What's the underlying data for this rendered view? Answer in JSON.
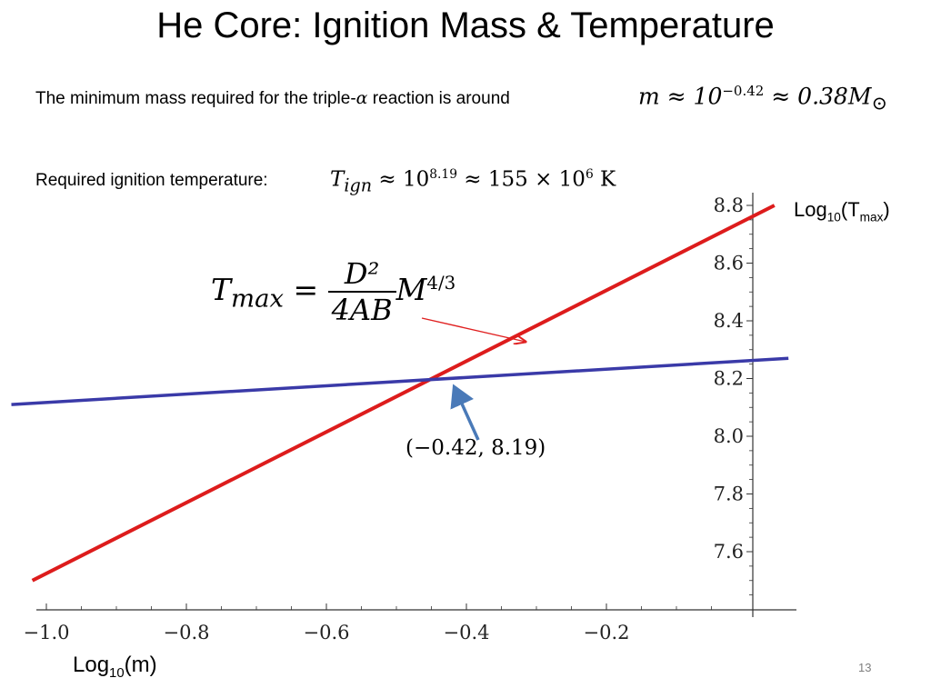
{
  "slide": {
    "title": "He Core: Ignition Mass & Temperature",
    "page_number": "13"
  },
  "text": {
    "min_mass_prefix": "The minimum mass required for the triple-",
    "alpha": "α",
    "min_mass_suffix": " reaction is around",
    "min_mass_eq_m": "m ≈ 10",
    "min_mass_eq_exp": "−0.42",
    "min_mass_eq_rest": " ≈ 0.38M",
    "min_mass_eq_sun": "⊙",
    "ign_temp_label": "Required ignition temperature:",
    "ign_eq_T": "T",
    "ign_eq_sub": "ign",
    "ign_eq_mid": " ≈ 10",
    "ign_eq_exp": "8.19",
    "ign_eq_mid2": " ≈ 155 × 10",
    "ign_eq_exp2": "6",
    "ign_eq_unit": " K",
    "formula_lhs": "T",
    "formula_lhs_sub": "max",
    "formula_eq": " = ",
    "formula_num": "D²",
    "formula_den": "4AB",
    "formula_M": "M",
    "formula_M_exp": "4/3",
    "intersection_label": "(−0.42, 8.19)",
    "y_axis_label_main": "Log",
    "y_axis_label_sub": "10",
    "y_axis_label_paren_open": "(T",
    "y_axis_label_sub2": "max",
    "y_axis_label_paren_close": ")",
    "x_axis_label_main": "Log",
    "x_axis_label_sub": "10",
    "x_axis_label_rest": "(m)"
  },
  "colors": {
    "red_line": "#dd1c1c",
    "blue_line": "#3a3aa8",
    "arrow_red": "#e02020",
    "arrow_blue": "#4a7ab8"
  },
  "chart_data": {
    "type": "line",
    "xlim": [
      -1.05,
      0.03
    ],
    "ylim": [
      7.47,
      8.83
    ],
    "x_ticks": [
      -1.0,
      -0.8,
      -0.6,
      -0.4,
      -0.2
    ],
    "x_tick_labels": [
      "−1.0",
      "−0.8",
      "−0.6",
      "−0.4",
      "−0.2"
    ],
    "y_ticks": [
      7.6,
      7.8,
      8.0,
      8.2,
      8.4,
      8.6,
      8.8
    ],
    "y_tick_labels": [
      "7.6",
      "7.8",
      "8.0",
      "8.2",
      "8.4",
      "8.6",
      "8.8"
    ],
    "series": [
      {
        "name": "",
        "color": "#dd1c1c",
        "x": [
          -1.02,
          0.04
        ],
        "y": [
          7.5,
          8.8
        ]
      },
      {
        "name": "",
        "color": "#3a3aa8",
        "x": [
          -1.05,
          0.06
        ],
        "y": [
          8.11,
          8.27
        ]
      }
    ],
    "intersection": {
      "x": -0.42,
      "y": 8.19
    }
  }
}
